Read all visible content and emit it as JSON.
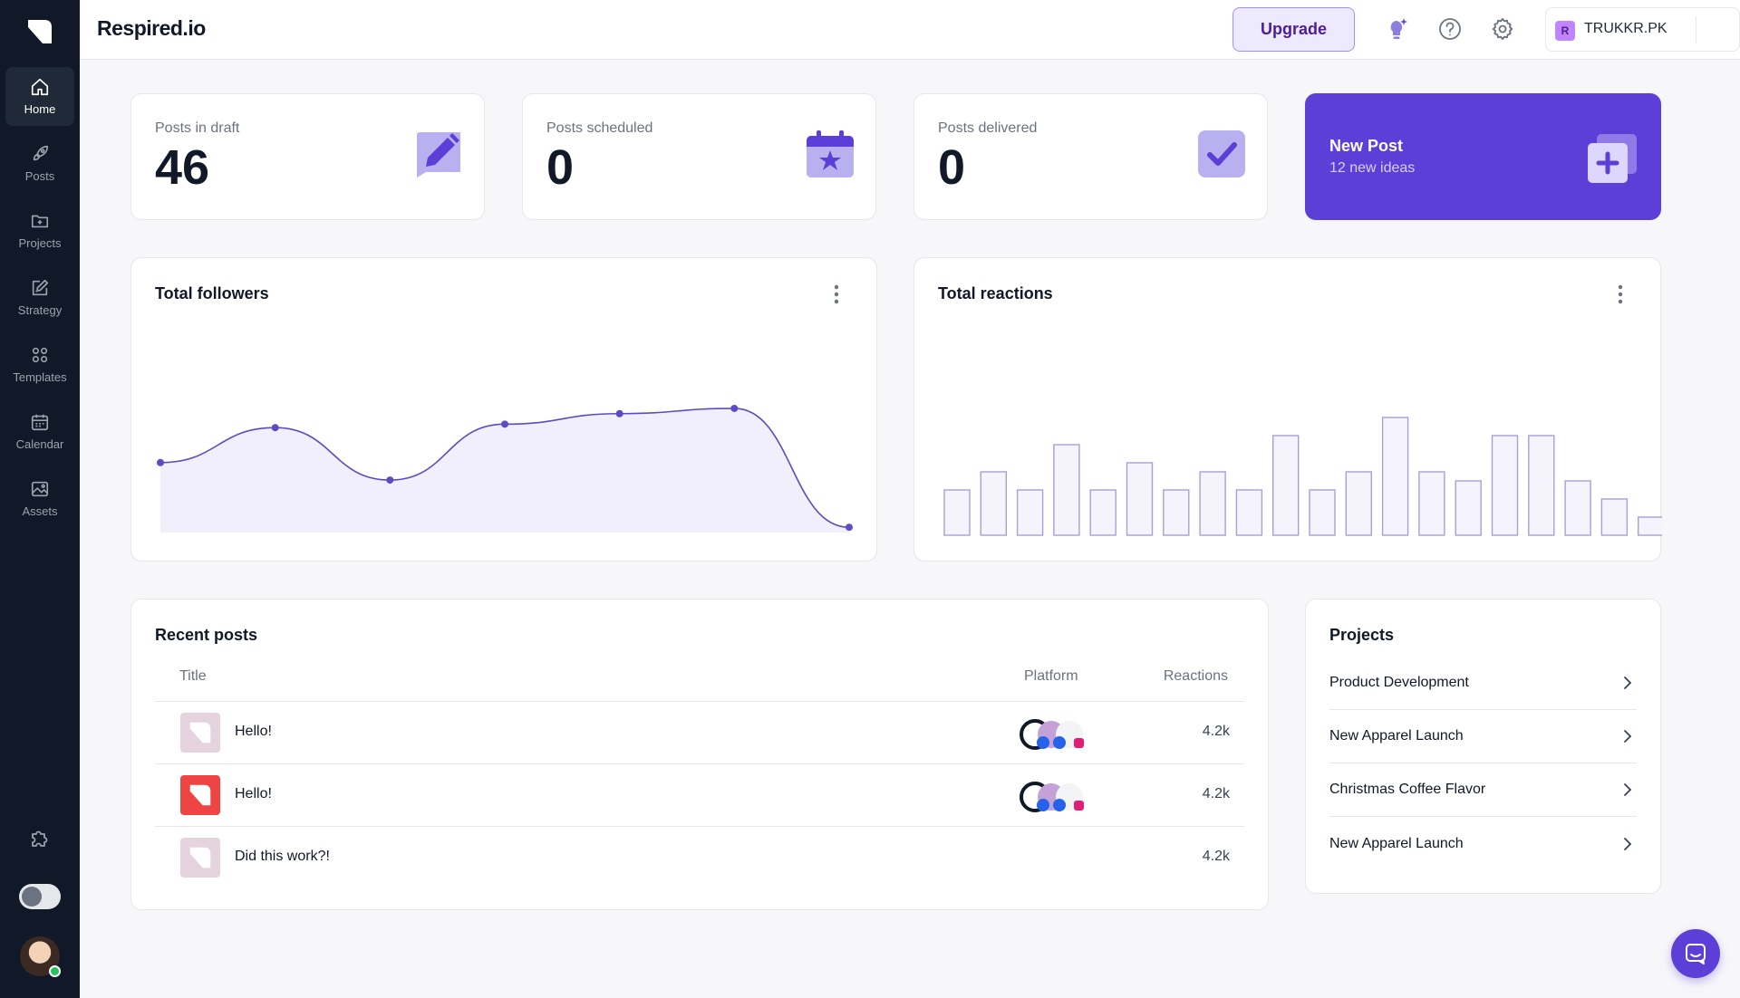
{
  "app": {
    "brand": "Respired.io"
  },
  "sidebar": {
    "items": [
      {
        "label": "Home",
        "icon": "home-icon",
        "active": true
      },
      {
        "label": "Posts",
        "icon": "rocket-icon"
      },
      {
        "label": "Projects",
        "icon": "folder-plus-icon"
      },
      {
        "label": "Strategy",
        "icon": "edit-icon"
      },
      {
        "label": "Templates",
        "icon": "grid-icon"
      },
      {
        "label": "Calendar",
        "icon": "calendar-icon"
      },
      {
        "label": "Assets",
        "icon": "image-icon"
      }
    ]
  },
  "topbar": {
    "upgrade_label": "Upgrade",
    "account_initial": "R",
    "account_name": "TRUKKR.PK"
  },
  "stats": [
    {
      "label": "Posts in draft",
      "value": "46"
    },
    {
      "label": "Posts scheduled",
      "value": "0"
    },
    {
      "label": "Posts delivered",
      "value": "0"
    }
  ],
  "new_post": {
    "title": "New Post",
    "subtitle": "12 new ideas"
  },
  "followers": {
    "title": "Total followers"
  },
  "reactions": {
    "title": "Total reactions"
  },
  "chart_data": [
    {
      "type": "area",
      "x": [
        1,
        2,
        3,
        4,
        5,
        6,
        7
      ],
      "series": [
        {
          "values": [
            40,
            60,
            30,
            62,
            68,
            71,
            3
          ]
        }
      ],
      "ylim": [
        0,
        100
      ],
      "grid": false,
      "legend": "none",
      "color": "#5b4bc4"
    },
    {
      "type": "bar",
      "categories": [
        "1",
        "2",
        "3",
        "4",
        "5",
        "6",
        "7",
        "8",
        "9",
        "10",
        "11",
        "12",
        "13",
        "14",
        "15",
        "16",
        "17",
        "18",
        "19",
        "20"
      ],
      "series": [
        {
          "values": [
            30,
            50,
            30,
            80,
            30,
            60,
            30,
            50,
            30,
            90,
            30,
            50,
            110,
            50,
            40,
            90,
            90,
            40,
            20,
            0
          ]
        }
      ],
      "ylim": [
        0,
        120
      ],
      "grid": false,
      "legend": "none",
      "color": "#a5a0d8"
    }
  ],
  "recent_posts": {
    "title": "Recent posts",
    "columns": {
      "title": "Title",
      "platform": "Platform",
      "reactions": "Reactions"
    },
    "rows": [
      {
        "title": "Hello!",
        "reactions": "4.2k",
        "thumb_color": "#e5d4dd",
        "show_platforms": true
      },
      {
        "title": "Hello!",
        "reactions": "4.2k",
        "thumb_color": "#ef4444",
        "show_platforms": true
      },
      {
        "title": "Did this work?!",
        "reactions": "4.2k",
        "thumb_color": "#e5d4dd",
        "show_platforms": false
      }
    ]
  },
  "projects": {
    "title": "Projects",
    "items": [
      "Product Development",
      "New Apparel Launch",
      "Christmas Coffee Flavor",
      "New Apparel Launch"
    ]
  }
}
